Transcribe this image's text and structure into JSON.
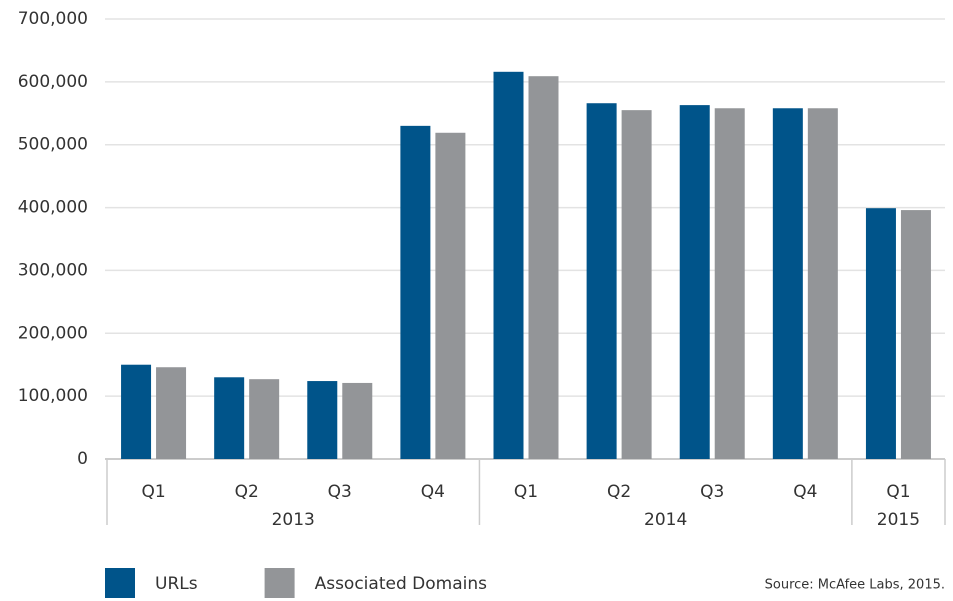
{
  "chart_data": {
    "type": "bar",
    "category_groups": [
      {
        "label": "2013",
        "categories": [
          "Q1",
          "Q2",
          "Q3",
          "Q4"
        ]
      },
      {
        "label": "2014",
        "categories": [
          "Q1",
          "Q2",
          "Q3",
          "Q4"
        ]
      },
      {
        "label": "2015",
        "categories": [
          "Q1"
        ]
      }
    ],
    "series": [
      {
        "name": "URLs",
        "color": "#00548a",
        "values": [
          150000,
          130000,
          124000,
          530000,
          616000,
          566000,
          563000,
          558000,
          399000
        ]
      },
      {
        "name": "Associated Domains",
        "color": "#939598",
        "values": [
          146000,
          127000,
          121000,
          519000,
          609000,
          555000,
          558000,
          558000,
          396000
        ]
      }
    ],
    "ylim": [
      0,
      700000
    ],
    "yticks": [
      0,
      {
        "value": 100000,
        "label": "100,000"
      },
      {
        "value": 200000,
        "label": "200,000"
      },
      {
        "value": 300000,
        "label": "300,000"
      },
      {
        "value": 400000,
        "label": "400,000"
      },
      {
        "value": 500000,
        "label": "500,000"
      },
      {
        "value": 600000,
        "label": "600,000"
      },
      {
        "value": 700000,
        "label": "700,000"
      }
    ],
    "grid": true,
    "legend": "bottom-left",
    "source": "Source: McAfee Labs, 2015."
  }
}
